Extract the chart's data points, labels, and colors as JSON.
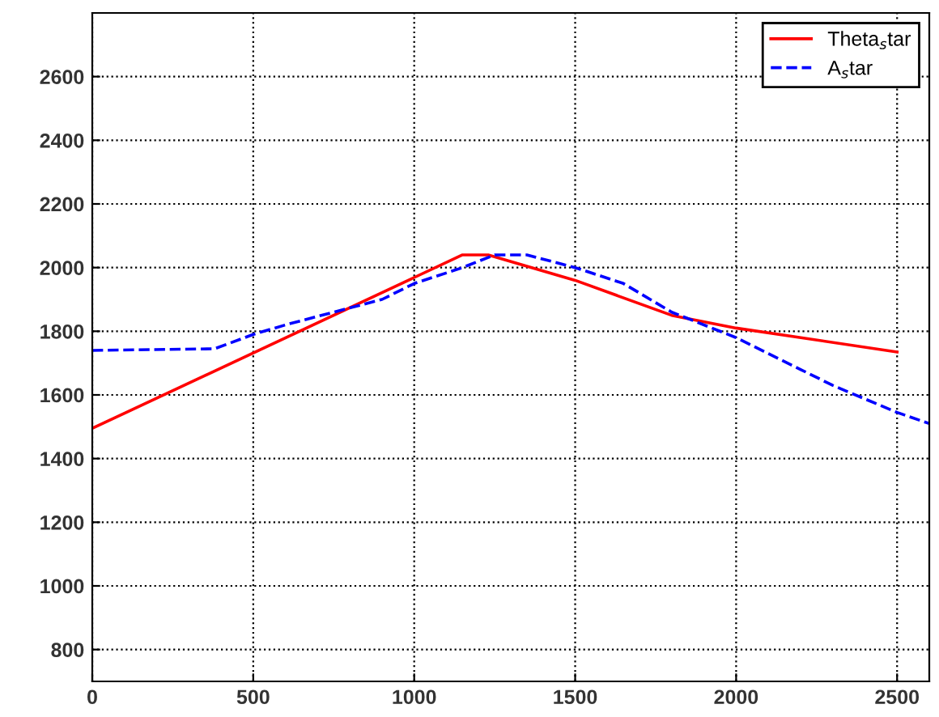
{
  "chart_data": {
    "type": "line",
    "xlim": [
      0,
      2600
    ],
    "ylim": [
      700,
      2800
    ],
    "xticks": [
      0,
      500,
      1000,
      1500,
      2000,
      2500
    ],
    "yticks": [
      800,
      1000,
      1200,
      1400,
      1600,
      1800,
      2000,
      2200,
      2400,
      2600
    ],
    "grid": true,
    "legend": "top right",
    "series": [
      {
        "name": "Theta$_{s}$tar",
        "color": "#ff0000",
        "line_style": "solid",
        "x": [
          0,
          1150,
          1230,
          1500,
          1800,
          2000,
          2500
        ],
        "values": [
          1495,
          2040,
          2040,
          1960,
          1850,
          1810,
          1735
        ]
      },
      {
        "name": "A$_{s}$tar",
        "color": "#0000ff",
        "line_style": "dashed",
        "x": [
          0,
          380,
          500,
          600,
          750,
          900,
          1000,
          1150,
          1250,
          1350,
          1500,
          1650,
          1800,
          2000,
          2200,
          2300,
          2500,
          2600
        ],
        "values": [
          1740,
          1745,
          1790,
          1820,
          1860,
          1900,
          1950,
          2000,
          2040,
          2040,
          2000,
          1950,
          1860,
          1780,
          1680,
          1630,
          1545,
          1510
        ]
      }
    ]
  }
}
